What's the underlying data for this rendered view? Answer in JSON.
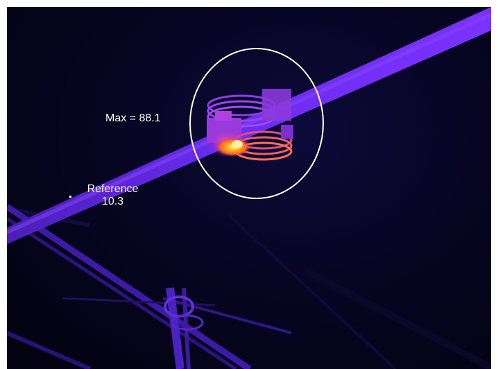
{
  "measurements": {
    "max_label": "Max = 88.1",
    "reference_label": "Reference",
    "reference_value": "10.3"
  },
  "colors": {
    "background": "#05031a",
    "cable": "#6a2cf0",
    "hot_spot": "#ffb020",
    "warm": "#c03ad8",
    "circle": "#ffffff"
  }
}
